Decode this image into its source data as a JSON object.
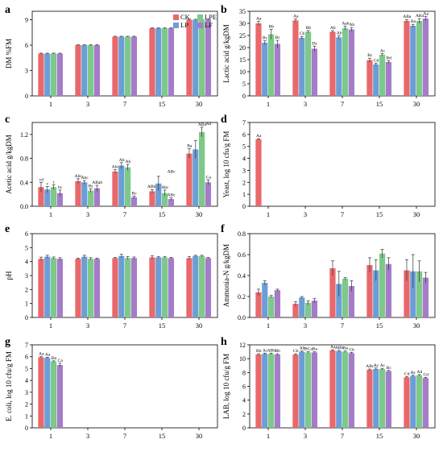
{
  "legend": {
    "entries": [
      {
        "label": "CK",
        "color": "#e8686c"
      },
      {
        "label": "LPE",
        "color": "#7cc98a"
      },
      {
        "label": "LP",
        "color": "#6c9ed6"
      },
      {
        "label": "LF",
        "color": "#a57cc8"
      }
    ],
    "placement": "top-right of panel a"
  },
  "chart_data": [
    {
      "panel": "a",
      "type": "bar",
      "ylabel": "DM %FM",
      "ylim": [
        0,
        10
      ],
      "yticks": [
        0,
        3,
        6,
        9
      ],
      "categories": [
        "1",
        "3",
        "7",
        "15",
        "30"
      ],
      "series": [
        {
          "name": "CK",
          "values": [
            5.0,
            6.0,
            7.0,
            8.0,
            9.0
          ],
          "errors": [
            0.05,
            0.05,
            0.05,
            0.05,
            0.05
          ],
          "labels": []
        },
        {
          "name": "LP",
          "values": [
            5.0,
            6.0,
            7.0,
            8.0,
            9.0
          ],
          "errors": [
            0.05,
            0.05,
            0.05,
            0.05,
            0.05
          ],
          "labels": []
        },
        {
          "name": "LPE",
          "values": [
            5.0,
            6.0,
            7.0,
            8.0,
            9.0
          ],
          "errors": [
            0.05,
            0.05,
            0.05,
            0.05,
            0.05
          ],
          "labels": []
        },
        {
          "name": "LF",
          "values": [
            5.0,
            6.0,
            7.0,
            8.0,
            9.0
          ],
          "errors": [
            0.05,
            0.05,
            0.05,
            0.05,
            0.05
          ],
          "labels": []
        }
      ]
    },
    {
      "panel": "b",
      "type": "bar",
      "ylabel": "Lactic acid g/kgDM",
      "ylim": [
        0,
        35
      ],
      "yticks": [
        0,
        5,
        10,
        15,
        20,
        25,
        30,
        35
      ],
      "categories": [
        "1",
        "3",
        "7",
        "15",
        "30"
      ],
      "series": [
        {
          "name": "CK",
          "values": [
            30.0,
            31.2,
            26.5,
            14.8,
            31.0
          ],
          "errors": [
            0.8,
            0.6,
            0.5,
            0.8,
            0.6
          ],
          "labels": [
            "Aa",
            "Aa",
            "Ab",
            "Bc",
            "ABa"
          ]
        },
        {
          "name": "LP",
          "values": [
            22.0,
            24.0,
            24.2,
            13.0,
            29.0
          ],
          "errors": [
            0.8,
            0.6,
            0.6,
            0.5,
            0.6
          ],
          "labels": [
            "Bc",
            "Cb",
            "Ab",
            "Cd",
            "Ba"
          ]
        },
        {
          "name": "LPE",
          "values": [
            25.5,
            26.5,
            28.0,
            17.0,
            31.0
          ],
          "errors": [
            2.0,
            0.5,
            0.8,
            0.5,
            1.0
          ],
          "labels": [
            "Bb",
            "Bb",
            "Aab",
            "Ac",
            "ABa"
          ]
        },
        {
          "name": "LF",
          "values": [
            21.5,
            19.5,
            27.5,
            14.0,
            32.0
          ],
          "errors": [
            1.5,
            1.0,
            0.8,
            0.5,
            0.8
          ],
          "labels": [
            "Bc",
            "Dc",
            "Ab",
            "Bd",
            "Aa"
          ]
        }
      ]
    },
    {
      "panel": "c",
      "type": "bar",
      "ylabel": "Acetic acid g/kgDM",
      "ylim": [
        0,
        1.4
      ],
      "yticks": [
        0.0,
        0.4,
        0.8,
        1.2
      ],
      "categories": [
        "1",
        "3",
        "7",
        "15",
        "30"
      ],
      "series": [
        {
          "name": "CK",
          "values": [
            0.32,
            0.42,
            0.58,
            0.25,
            0.88
          ],
          "errors": [
            0.08,
            0.04,
            0.03,
            0.03,
            0.08
          ],
          "labels": [
            "cd",
            "Abc",
            "Abc",
            "ABbc",
            "Ba"
          ]
        },
        {
          "name": "LP",
          "values": [
            0.28,
            0.4,
            0.68,
            0.38,
            0.95
          ],
          "errors": [
            0.05,
            0.03,
            0.05,
            0.12,
            0.15
          ],
          "labels": [
            "c",
            "Abc",
            "Ab",
            "",
            ""
          ]
        },
        {
          "name": "LPE",
          "values": [
            0.32,
            0.26,
            0.65,
            0.22,
            1.24
          ],
          "errors": [
            0.04,
            0.03,
            0.05,
            0.05,
            0.08
          ],
          "labels": [
            "c",
            "Bc",
            "Ab",
            "Abc",
            "ABa"
          ]
        },
        {
          "name": "LF",
          "values": [
            0.22,
            0.3,
            0.15,
            0.12,
            0.4
          ],
          "errors": [
            0.05,
            0.05,
            0.02,
            0.02,
            0.04
          ],
          "labels": [
            "bc",
            "ABab",
            "Bc",
            "ABc",
            "Ca"
          ]
        }
      ],
      "extra_labels": [
        {
          "category": "30",
          "text": "Aa"
        },
        {
          "category": "15",
          "text": "ABc"
        }
      ]
    },
    {
      "panel": "d",
      "type": "bar",
      "ylabel": "Yeast, log 10 cfu/g FM",
      "ylim": [
        0,
        7
      ],
      "yticks": [
        0,
        1,
        2,
        3,
        4,
        5,
        6,
        7
      ],
      "categories": [
        "1",
        "3",
        "7",
        "15",
        "30"
      ],
      "series": [
        {
          "name": "CK",
          "values": [
            5.6,
            0,
            0,
            0,
            0
          ],
          "errors": [
            0.05,
            0,
            0,
            0,
            0
          ],
          "labels": [
            "Aa",
            "",
            "",
            "",
            ""
          ]
        },
        {
          "name": "LP",
          "values": [
            0,
            0,
            0,
            0,
            0
          ],
          "errors": [
            0,
            0,
            0,
            0,
            0
          ],
          "labels": []
        },
        {
          "name": "LPE",
          "values": [
            0,
            0,
            0,
            0,
            0
          ],
          "errors": [
            0,
            0,
            0,
            0,
            0
          ],
          "labels": []
        },
        {
          "name": "LF",
          "values": [
            0,
            0,
            0,
            0,
            0
          ],
          "errors": [
            0,
            0,
            0,
            0,
            0
          ],
          "labels": []
        }
      ]
    },
    {
      "panel": "e",
      "type": "bar",
      "ylabel": "pH",
      "ylim": [
        0,
        6
      ],
      "yticks": [
        0,
        1,
        2,
        3,
        4,
        5,
        6
      ],
      "categories": [
        "1",
        "3",
        "7",
        "15",
        "30"
      ],
      "series": [
        {
          "name": "CK",
          "values": [
            4.2,
            4.2,
            4.25,
            4.3,
            4.25
          ],
          "errors": [
            0.12,
            0.05,
            0.05,
            0.12,
            0.1
          ],
          "labels": []
        },
        {
          "name": "LP",
          "values": [
            4.35,
            4.35,
            4.4,
            4.3,
            4.4
          ],
          "errors": [
            0.1,
            0.1,
            0.12,
            0.05,
            0.05
          ],
          "labels": []
        },
        {
          "name": "LPE",
          "values": [
            4.25,
            4.2,
            4.25,
            4.3,
            4.4
          ],
          "errors": [
            0.08,
            0.08,
            0.1,
            0.05,
            0.05
          ],
          "labels": []
        },
        {
          "name": "LF",
          "values": [
            4.2,
            4.2,
            4.25,
            4.25,
            4.25
          ],
          "errors": [
            0.08,
            0.05,
            0.08,
            0.05,
            0.05
          ],
          "labels": []
        }
      ]
    },
    {
      "panel": "f",
      "type": "bar",
      "ylabel": "Ammonia-N g/kgDM",
      "ylim": [
        0,
        0.8
      ],
      "yticks": [
        0.0,
        0.2,
        0.4,
        0.6,
        0.8
      ],
      "categories": [
        "1",
        "3",
        "7",
        "15",
        "30"
      ],
      "series": [
        {
          "name": "CK",
          "values": [
            0.24,
            0.13,
            0.47,
            0.5,
            0.45
          ],
          "errors": [
            0.03,
            0.02,
            0.07,
            0.07,
            0.1
          ],
          "labels": []
        },
        {
          "name": "LP",
          "values": [
            0.33,
            0.19,
            0.32,
            0.45,
            0.44
          ],
          "errors": [
            0.02,
            0.01,
            0.12,
            0.1,
            0.16
          ],
          "labels": []
        },
        {
          "name": "LPE",
          "values": [
            0.2,
            0.14,
            0.37,
            0.61,
            0.44
          ],
          "errors": [
            0.01,
            0.02,
            0.01,
            0.04,
            0.1
          ],
          "labels": []
        },
        {
          "name": "LF",
          "values": [
            0.26,
            0.16,
            0.3,
            0.51,
            0.38
          ],
          "errors": [
            0.01,
            0.02,
            0.05,
            0.06,
            0.05
          ],
          "labels": []
        }
      ]
    },
    {
      "panel": "g",
      "type": "bar",
      "ylabel": "E. coli, log 10 cfu/g FM",
      "ylim": [
        0,
        7
      ],
      "yticks": [
        0,
        1,
        2,
        3,
        4,
        5,
        6,
        7
      ],
      "categories": [
        "1",
        "3",
        "7",
        "15",
        "30"
      ],
      "series": [
        {
          "name": "CK",
          "values": [
            5.95,
            0,
            0,
            0,
            0
          ],
          "errors": [
            0.05,
            0,
            0,
            0,
            0
          ],
          "labels": [
            "Aa",
            "",
            "",
            "",
            ""
          ]
        },
        {
          "name": "LP",
          "values": [
            5.9,
            0,
            0,
            0,
            0
          ],
          "errors": [
            0.05,
            0,
            0,
            0,
            0
          ],
          "labels": [
            "Aa",
            "",
            "",
            "",
            ""
          ]
        },
        {
          "name": "LPE",
          "values": [
            5.6,
            0,
            0,
            0,
            0
          ],
          "errors": [
            0.05,
            0,
            0,
            0,
            0
          ],
          "labels": [
            "Ba",
            "",
            "",
            "",
            ""
          ]
        },
        {
          "name": "LF",
          "values": [
            5.3,
            0,
            0,
            0,
            0
          ],
          "errors": [
            0.15,
            0,
            0,
            0,
            0
          ],
          "labels": [
            "Ca",
            "",
            "",
            "",
            ""
          ]
        }
      ]
    },
    {
      "panel": "h",
      "type": "bar",
      "ylabel": "LAB, log 10 cfu/g FM",
      "ylim": [
        0,
        12
      ],
      "yticks": [
        0,
        2,
        4,
        6,
        8,
        10,
        12
      ],
      "categories": [
        "1",
        "3",
        "7",
        "15",
        "30"
      ],
      "series": [
        {
          "name": "CK",
          "values": [
            10.6,
            10.6,
            11.2,
            8.4,
            7.3
          ],
          "errors": [
            0.1,
            0.1,
            0.1,
            0.1,
            0.1
          ],
          "labels": [
            "Bb",
            "Cb",
            "Aa",
            "ABc",
            "Cd"
          ]
        },
        {
          "name": "LP",
          "values": [
            10.7,
            11.0,
            11.1,
            8.5,
            7.5
          ],
          "errors": [
            0.1,
            0.1,
            0.1,
            0.15,
            0.1
          ],
          "labels": [
            "Ac",
            "Ab",
            "ABb",
            "Ac",
            "Bc"
          ]
        },
        {
          "name": "LPE",
          "values": [
            10.7,
            10.9,
            11.0,
            8.5,
            7.6
          ],
          "errors": [
            0.1,
            0.1,
            0.1,
            0.1,
            0.1
          ],
          "labels": [
            "ABb",
            "BCa",
            "Ba",
            "Ac",
            "Ad"
          ]
        },
        {
          "name": "LF",
          "values": [
            10.6,
            10.9,
            10.8,
            8.2,
            7.2
          ],
          "errors": [
            0.1,
            0.1,
            0.1,
            0.1,
            0.1
          ],
          "labels": [
            "Bb",
            "Ba",
            "Cb",
            "Bc",
            "Cd"
          ]
        }
      ]
    }
  ]
}
